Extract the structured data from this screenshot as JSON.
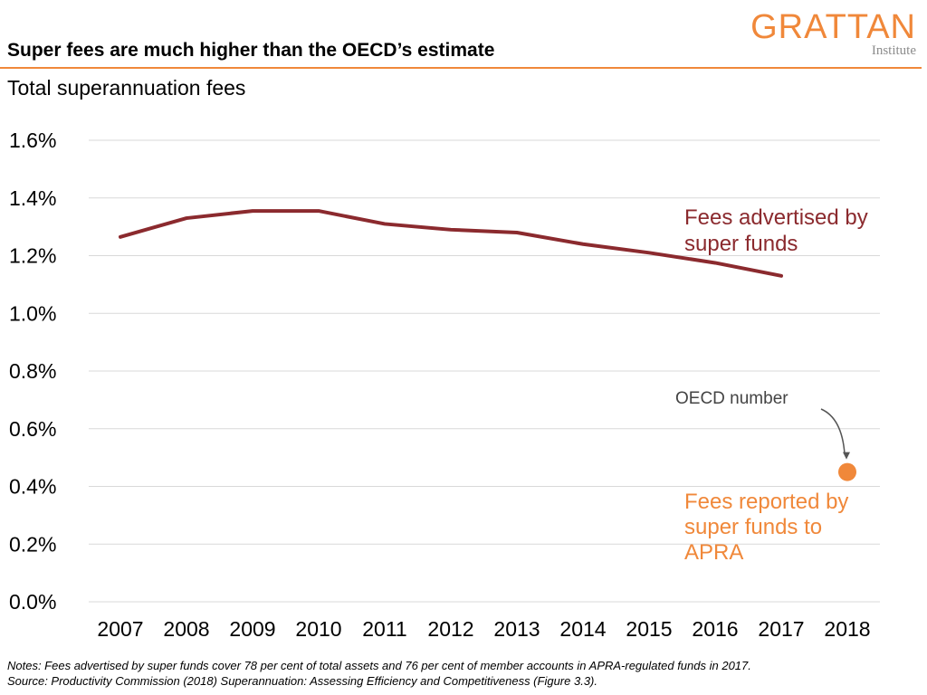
{
  "header": {
    "title": "Super fees are much higher than the OECD’s estimate",
    "subtitle": "Total superannuation fees"
  },
  "logo": {
    "main": "GRATTAN",
    "sub": "Institute"
  },
  "notes": {
    "line1": "Notes: Fees advertised by super funds cover 78 per cent of total assets and 76 per cent of member accounts in APRA-regulated funds in 2017.",
    "line2": "Source: Productivity Commission (2018) Superannuation: Assessing Efficiency and Competitiveness (Figure 3.3)."
  },
  "colors": {
    "line_series": "#8b2a2e",
    "point_series": "#f0883a",
    "grid": "#d9d9d9",
    "annotation_arrow": "#555555"
  },
  "chart_data": {
    "type": "line",
    "title": "",
    "xlabel": "",
    "ylabel": "",
    "categories": [
      "2007",
      "2008",
      "2009",
      "2010",
      "2011",
      "2012",
      "2013",
      "2014",
      "2015",
      "2016",
      "2017",
      "2018"
    ],
    "ylim": [
      0,
      1.6
    ],
    "yticks": [
      0,
      0.2,
      0.4,
      0.6,
      0.8,
      1.0,
      1.2,
      1.4,
      1.6
    ],
    "ytick_labels": [
      "0.0%",
      "0.2%",
      "0.4%",
      "0.6%",
      "0.8%",
      "1.0%",
      "1.2%",
      "1.4%",
      "1.6%"
    ],
    "grid": true,
    "series": [
      {
        "label_lines": [
          "Fees advertised by",
          "super funds"
        ],
        "type": "line",
        "values": [
          1.265,
          1.33,
          1.355,
          1.355,
          1.31,
          1.29,
          1.28,
          1.24,
          1.21,
          1.175,
          1.13,
          null
        ]
      },
      {
        "label_lines": [
          "Fees reported by",
          "super funds to",
          "APRA"
        ],
        "type": "point",
        "values": [
          null,
          null,
          null,
          null,
          null,
          null,
          null,
          null,
          null,
          null,
          null,
          0.45
        ]
      }
    ],
    "annotations": [
      {
        "text": "OECD number",
        "category": "2018",
        "value": 0.45
      }
    ]
  }
}
